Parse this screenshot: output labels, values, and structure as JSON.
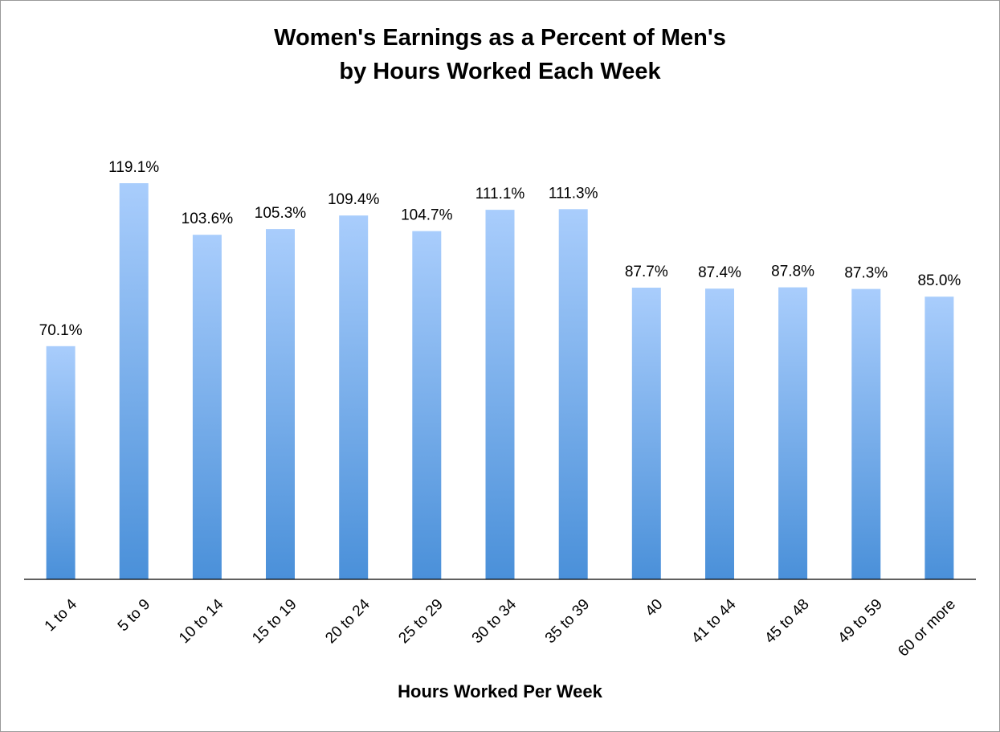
{
  "chart_data": {
    "type": "bar",
    "title_lines": [
      "Women's Earnings as a Percent of Men's",
      "by Hours Worked Each Week"
    ],
    "xlabel": "Hours Worked Per Week",
    "ylabel": "",
    "categories": [
      "1 to 4",
      "5 to 9",
      "10 to 14",
      "15 to 19",
      "20 to 24",
      "25 to 29",
      "30 to 34",
      "35 to 39",
      "40",
      "41 to 44",
      "45 to 48",
      "49 to 59",
      "60 or more"
    ],
    "values": [
      70.1,
      119.1,
      103.6,
      105.3,
      109.4,
      104.7,
      111.1,
      111.3,
      87.7,
      87.4,
      87.8,
      87.3,
      85.0
    ],
    "data_labels": [
      "70.1%",
      "119.1%",
      "103.6%",
      "105.3%",
      "109.4%",
      "104.7%",
      "111.1%",
      "111.3%",
      "87.7%",
      "87.4%",
      "87.8%",
      "87.3%",
      "85.0%"
    ],
    "ylim": [
      0,
      119.1
    ],
    "grid": false,
    "legend": "none",
    "bar_color_top": "#a9cdfc",
    "bar_color_bottom": "#4a90d9"
  }
}
